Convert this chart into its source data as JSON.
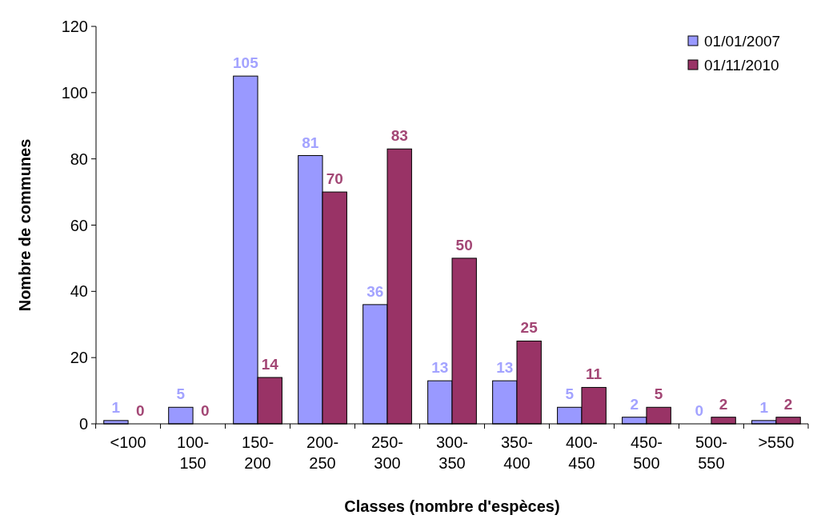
{
  "chart_data": {
    "type": "bar",
    "xlabel": "Classes (nombre d'espèces)",
    "ylabel": "Nombre de communes",
    "categories": [
      "<100",
      "100-150",
      "150-200",
      "200-250",
      "250-300",
      "300-350",
      "350-400",
      "400-450",
      "450-500",
      "500-550",
      ">550"
    ],
    "series": [
      {
        "name": "01/01/2007",
        "color": "#9999ff",
        "values": [
          1,
          5,
          105,
          81,
          36,
          13,
          13,
          5,
          2,
          0,
          1
        ]
      },
      {
        "name": "01/11/2010",
        "color": "#993366",
        "values": [
          0,
          0,
          14,
          70,
          83,
          50,
          25,
          11,
          5,
          2,
          2
        ]
      }
    ],
    "ylim": [
      0,
      120
    ],
    "yticks": [
      0,
      20,
      40,
      60,
      80,
      100,
      120
    ],
    "data_labels": true,
    "legend": "top right"
  }
}
